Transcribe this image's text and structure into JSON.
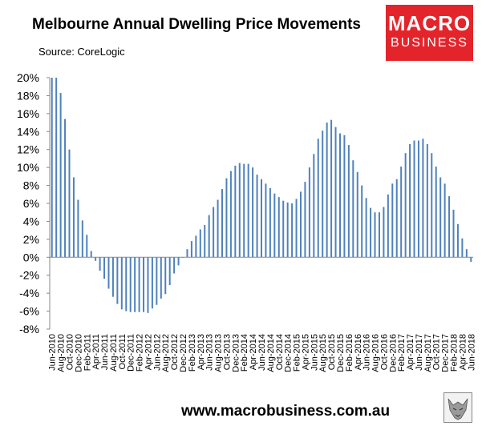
{
  "header": {
    "title": "Melbourne Annual Dwelling Price Movements",
    "source": "Source: CoreLogic"
  },
  "logo": {
    "line1": "MACRO",
    "line2": "BUSINESS"
  },
  "footer": {
    "url": "www.macrobusiness.com.au"
  },
  "colors": {
    "bar": "#4f81bd",
    "logo_bg": "#e3242b"
  },
  "chart_data": {
    "type": "bar",
    "title": "Melbourne Annual Dwelling Price Movements",
    "xlabel": "",
    "ylabel": "",
    "ylim": [
      -8,
      20
    ],
    "yticks": [
      20,
      18,
      16,
      14,
      12,
      10,
      8,
      6,
      4,
      2,
      0,
      -2,
      -4,
      -6,
      -8
    ],
    "ytick_labels": [
      "20%",
      "18%",
      "16%",
      "14%",
      "12%",
      "10%",
      "8%",
      "6%",
      "4%",
      "2%",
      "0%",
      "-2%",
      "-4%",
      "-6%",
      "-8%"
    ],
    "xtick_labels": [
      "Jun-2010",
      "Aug-2010",
      "Oct-2010",
      "Dec-2010",
      "Feb-2011",
      "Apr-2011",
      "Jun-2011",
      "Aug-2011",
      "Oct-2011",
      "Dec-2011",
      "Feb-2012",
      "Apr-2012",
      "Jun-2012",
      "Aug-2012",
      "Oct-2012",
      "Dec-2012",
      "Feb-2013",
      "Apr-2013",
      "Jun-2013",
      "Aug-2013",
      "Oct-2013",
      "Dec-2013",
      "Feb-2014",
      "Apr-2014",
      "Jun-2014",
      "Aug-2014",
      "Oct-2014",
      "Dec-2014",
      "Feb-2015",
      "Apr-2015",
      "Jun-2015",
      "Aug-2015",
      "Oct-2015",
      "Dec-2015",
      "Feb-2016",
      "Apr-2016",
      "Jun-2016",
      "Aug-2016",
      "Oct-2016",
      "Dec-2016",
      "Feb-2017",
      "Apr-2017",
      "Jun-2017",
      "Aug-2017",
      "Oct-2017",
      "Dec-2017",
      "Feb-2018",
      "Apr-2018",
      "Jun-2018"
    ],
    "grid": false,
    "legend": "none",
    "series": [
      {
        "values": [
          20.5,
          20.2,
          18.3,
          15.4,
          12.0,
          8.9,
          6.4,
          4.1,
          2.5,
          0.7,
          -0.4,
          -1.5,
          -2.4,
          -3.5,
          -4.4,
          -5.2,
          -5.8,
          -6.0,
          -6.1,
          -6.1,
          -6.1,
          -6.1,
          -6.2,
          -5.7,
          -5.3,
          -4.6,
          -4.1,
          -3.1,
          -1.8,
          -0.9,
          0.0,
          0.9,
          1.8,
          2.4,
          3.1,
          3.6,
          4.7,
          5.6,
          6.4,
          7.6,
          8.8,
          9.6,
          10.2,
          10.5,
          10.4,
          10.4,
          10.0,
          9.2,
          8.7,
          8.2,
          7.7,
          7.1,
          6.7,
          6.3,
          6.1,
          6.0,
          6.5,
          7.3,
          8.4,
          10.0,
          11.5,
          13.2,
          14.1,
          15.0,
          15.3,
          14.5,
          13.8,
          13.6,
          12.5,
          10.8,
          9.5,
          8.0,
          6.6,
          5.5,
          5.0,
          5.0,
          5.6,
          7.0,
          8.2,
          8.7,
          10.1,
          11.6,
          12.6,
          13.0,
          13.0,
          13.2,
          12.6,
          11.6,
          10.1,
          8.9,
          8.2,
          6.8,
          5.3,
          3.7,
          2.1,
          0.9,
          -0.5
        ]
      }
    ]
  }
}
